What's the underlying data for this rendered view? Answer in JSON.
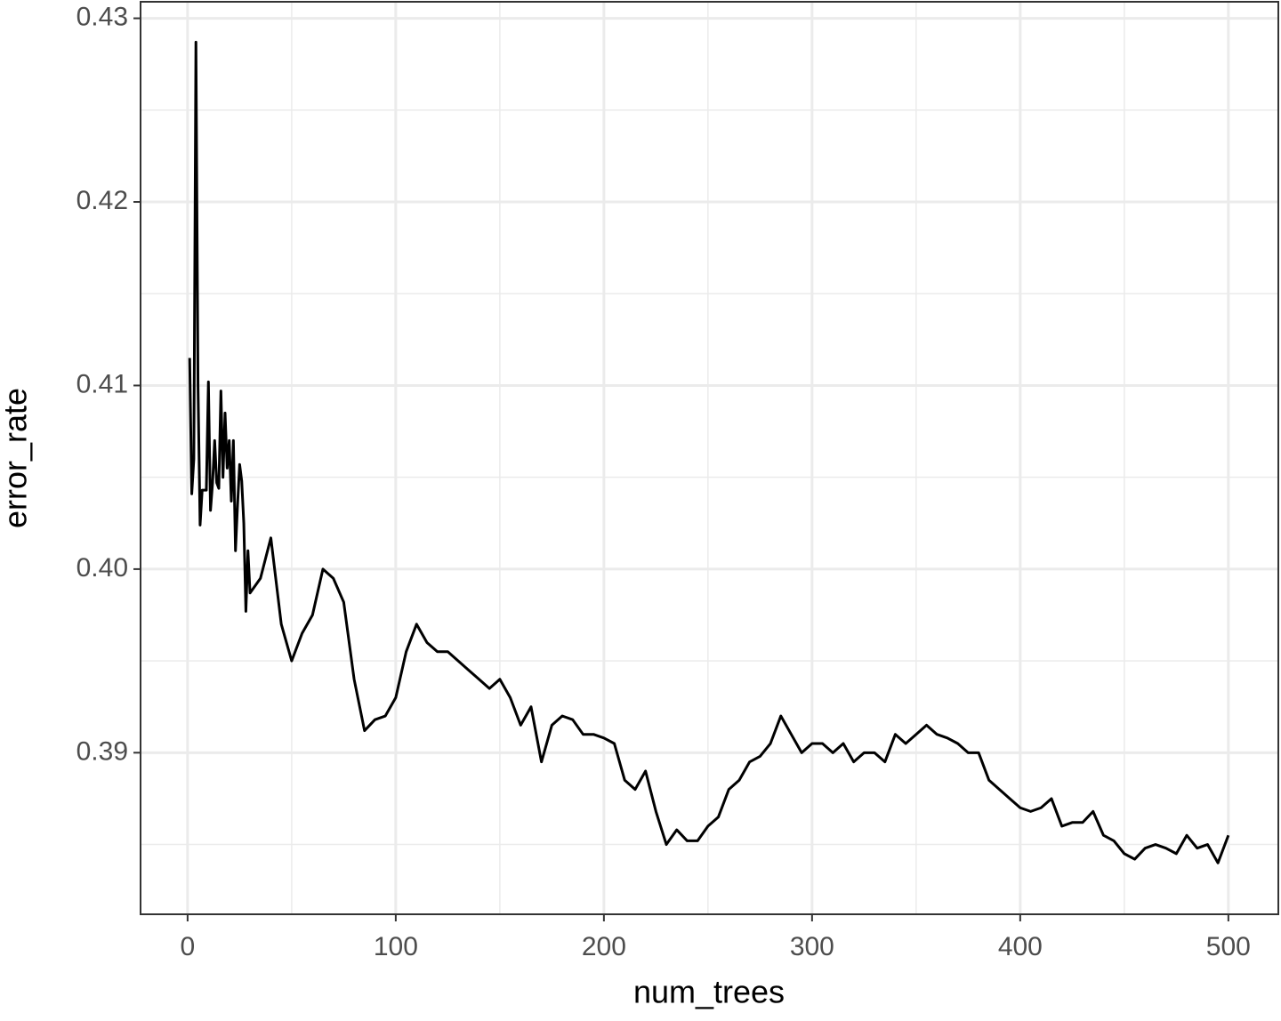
{
  "chart_data": {
    "type": "line",
    "x_label": "num_trees",
    "y_label": "error_rate",
    "color": "#000000",
    "x": [
      1,
      2,
      3,
      4,
      5,
      6,
      7,
      8,
      9,
      10,
      11,
      12,
      13,
      14,
      15,
      16,
      17,
      18,
      19,
      20,
      21,
      22,
      23,
      24,
      25,
      26,
      27,
      28,
      29,
      30,
      35,
      40,
      45,
      50,
      55,
      60,
      65,
      70,
      75,
      80,
      85,
      90,
      95,
      100,
      105,
      110,
      115,
      120,
      125,
      130,
      135,
      140,
      145,
      150,
      155,
      160,
      165,
      170,
      175,
      180,
      185,
      190,
      195,
      200,
      205,
      210,
      215,
      220,
      225,
      230,
      235,
      240,
      245,
      250,
      255,
      260,
      265,
      270,
      275,
      280,
      285,
      290,
      295,
      300,
      305,
      310,
      315,
      320,
      325,
      330,
      335,
      340,
      345,
      350,
      355,
      360,
      365,
      370,
      375,
      380,
      385,
      390,
      395,
      400,
      405,
      410,
      415,
      420,
      425,
      430,
      435,
      440,
      445,
      450,
      455,
      460,
      465,
      470,
      475,
      480,
      485,
      490,
      495,
      500
    ],
    "values": [
      0.4115,
      0.4041,
      0.406,
      0.4287,
      0.41,
      0.4024,
      0.4043,
      0.4043,
      0.4043,
      0.4102,
      0.4032,
      0.4047,
      0.407,
      0.4047,
      0.4044,
      0.4097,
      0.405,
      0.4085,
      0.4055,
      0.407,
      0.4037,
      0.407,
      0.401,
      0.4035,
      0.4057,
      0.4048,
      0.4025,
      0.3977,
      0.401,
      0.3987,
      0.3995,
      0.4017,
      0.397,
      0.395,
      0.3965,
      0.3975,
      0.4,
      0.3995,
      0.3982,
      0.394,
      0.3912,
      0.3918,
      0.392,
      0.393,
      0.3955,
      0.397,
      0.396,
      0.3955,
      0.3955,
      0.395,
      0.3945,
      0.394,
      0.3935,
      0.394,
      0.393,
      0.3915,
      0.3925,
      0.3895,
      0.3915,
      0.392,
      0.3918,
      0.391,
      0.391,
      0.3908,
      0.3905,
      0.3885,
      0.388,
      0.389,
      0.3868,
      0.385,
      0.3858,
      0.3852,
      0.3852,
      0.386,
      0.3865,
      0.388,
      0.3885,
      0.3895,
      0.3898,
      0.3905,
      0.392,
      0.391,
      0.39,
      0.3905,
      0.3905,
      0.39,
      0.3905,
      0.3895,
      0.39,
      0.39,
      0.3895,
      0.391,
      0.3905,
      0.391,
      0.3915,
      0.391,
      0.3908,
      0.3905,
      0.39,
      0.39,
      0.3885,
      0.388,
      0.3875,
      0.387,
      0.3868,
      0.387,
      0.3875,
      0.386,
      0.3862,
      0.3862,
      0.3868,
      0.3855,
      0.3852,
      0.3845,
      0.3842,
      0.3848,
      0.385,
      0.3848,
      0.3845,
      0.3855,
      0.3848,
      0.385,
      0.384,
      0.3855
    ],
    "xlim": [
      -22.6,
      524
    ],
    "ylim": [
      0.3812,
      0.4309
    ],
    "xticks": [
      0,
      100,
      200,
      300,
      400,
      500
    ],
    "yticks": [
      {
        "value": 0.39,
        "label": "0.39"
      },
      {
        "value": 0.4,
        "label": "0.40"
      },
      {
        "value": 0.41,
        "label": "0.41"
      },
      {
        "value": 0.42,
        "label": "0.42"
      },
      {
        "value": 0.43,
        "label": "0.43"
      }
    ],
    "xminor": [
      50,
      150,
      250,
      350,
      450
    ],
    "yminor": [
      0.385,
      0.395,
      0.405,
      0.415,
      0.425
    ],
    "grid": true
  }
}
